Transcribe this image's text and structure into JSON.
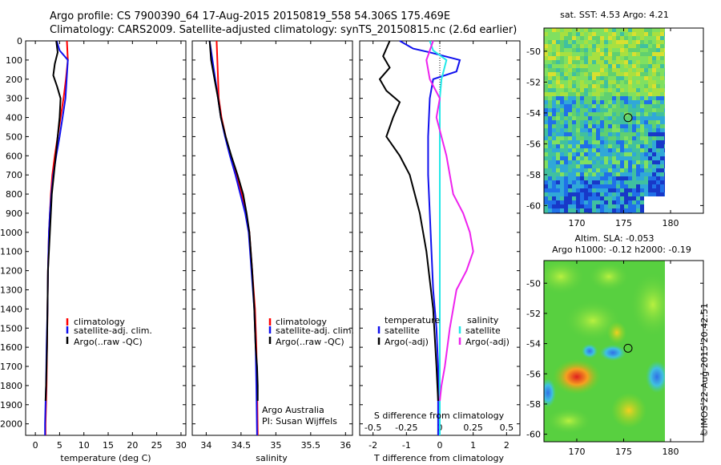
{
  "header": {
    "title_line1": "Argo profile: CS 7900390_64 17-Aug-2015 20150819_558 54.306S 175.469E",
    "title_line2": "Climatology: CARS2009. Satellite-adjusted climatology: synTS_20150815.nc (2.6d earlier)"
  },
  "credit": "©IMOS 22-Aug-2015 20:42:51",
  "colors": {
    "red": "#ff0000",
    "blue": "#1010ee",
    "black": "#000000",
    "cyan": "#22e8e8",
    "magenta": "#ee22ee"
  },
  "chart_data": [
    {
      "type": "line",
      "xlabel": "temperature (deg C)",
      "ylabel": "",
      "xlim": [
        -2,
        31
      ],
      "ylim": [
        2060,
        0
      ],
      "y_reversed": true,
      "xticks": [
        0,
        5,
        10,
        15,
        20,
        25,
        30
      ],
      "yticks": [
        0,
        100,
        200,
        300,
        400,
        500,
        600,
        700,
        800,
        900,
        1000,
        1100,
        1200,
        1300,
        1400,
        1500,
        1600,
        1700,
        1800,
        1900,
        2000
      ],
      "legend": [
        "climatology",
        "satellite-adj. clim.",
        "Argo(..raw -QC)"
      ],
      "series": [
        {
          "name": "climatology",
          "color": "red",
          "x": [
            6.5,
            6.7,
            6.3,
            5.8,
            5.2,
            4.6,
            4.0,
            3.5,
            3.2,
            3.0,
            2.8,
            2.6,
            2.5,
            2.4,
            2.3,
            2.2,
            2.1,
            2.1
          ],
          "y": [
            0,
            100,
            200,
            300,
            400,
            500,
            600,
            700,
            800,
            900,
            1000,
            1200,
            1400,
            1600,
            1800,
            1900,
            2000,
            2060
          ]
        },
        {
          "name": "satellite-adj. clim.",
          "color": "blue",
          "x": [
            4.4,
            5.0,
            6.7,
            6.2,
            5.6,
            5.0,
            4.3,
            3.7,
            3.3,
            3.0,
            2.8,
            2.6,
            2.5,
            2.3,
            2.2,
            2.1,
            2.0,
            2.0
          ],
          "y": [
            0,
            50,
            100,
            300,
            400,
            500,
            600,
            700,
            800,
            900,
            1000,
            1200,
            1400,
            1600,
            1800,
            1900,
            2000,
            2060
          ]
        },
        {
          "name": "Argo(..raw -QC)",
          "color": "black",
          "x": [
            4.3,
            4.6,
            4.0,
            3.7,
            4.5,
            5.2,
            5.0,
            4.6,
            4.2,
            3.8,
            3.4,
            3.2,
            3.0,
            2.8,
            2.6,
            2.5,
            2.4,
            2.3,
            2.2,
            2.1
          ],
          "y": [
            0,
            60,
            120,
            180,
            240,
            300,
            400,
            500,
            600,
            700,
            800,
            900,
            1000,
            1100,
            1200,
            1400,
            1600,
            1700,
            1800,
            1880
          ]
        }
      ]
    },
    {
      "type": "line",
      "xlabel": "salinity",
      "xlim": [
        33.8,
        36.1
      ],
      "ylim": [
        2060,
        0
      ],
      "y_reversed": true,
      "xticks": [
        34,
        34.5,
        35,
        35.5,
        36
      ],
      "legend": [
        "climatology",
        "satellite-adj. clim.",
        "Argo(..raw -QC)"
      ],
      "annotation": [
        "Argo Australia",
        "PI: Susan Wijffels"
      ],
      "series": [
        {
          "name": "climatology",
          "color": "red",
          "x": [
            34.15,
            34.16,
            34.17,
            34.18,
            34.22,
            34.28,
            34.35,
            34.43,
            34.51,
            34.57,
            34.62,
            34.66,
            34.7,
            34.72,
            34.73,
            34.74
          ],
          "y": [
            0,
            100,
            200,
            300,
            400,
            500,
            600,
            700,
            800,
            900,
            1000,
            1200,
            1400,
            1600,
            1800,
            2060
          ]
        },
        {
          "name": "satellite-adj. clim.",
          "color": "blue",
          "x": [
            34.05,
            34.09,
            34.13,
            34.17,
            34.21,
            34.27,
            34.34,
            34.42,
            34.49,
            34.56,
            34.61,
            34.65,
            34.69,
            34.71,
            34.72,
            34.73
          ],
          "y": [
            0,
            100,
            200,
            300,
            400,
            500,
            600,
            700,
            800,
            900,
            1000,
            1200,
            1400,
            1600,
            1800,
            2060
          ]
        },
        {
          "name": "Argo(..raw -QC)",
          "color": "black",
          "x": [
            34.05,
            34.07,
            34.12,
            34.17,
            34.21,
            34.28,
            34.36,
            34.45,
            34.53,
            34.58,
            34.62,
            34.66,
            34.69,
            34.71,
            34.73,
            34.74,
            34.74
          ],
          "y": [
            0,
            100,
            200,
            300,
            400,
            500,
            600,
            700,
            800,
            900,
            1000,
            1200,
            1400,
            1600,
            1700,
            1800,
            1880
          ]
        }
      ]
    },
    {
      "type": "line",
      "xlabel": "T difference from climatology",
      "xlabel_top": "S difference from climatology",
      "xlim": [
        -2.4,
        2.4
      ],
      "ylim": [
        2060,
        0
      ],
      "y_reversed": true,
      "xticks": [
        -2,
        -1,
        0,
        1,
        2
      ],
      "xticks_salinity": [
        -0.5,
        -0.25,
        0,
        0.25,
        0.5
      ],
      "legend_headers": [
        "temperature",
        "salinity"
      ],
      "legend": [
        "satellite",
        "Argo(-adj)",
        "satellite",
        "Argo(-adj)"
      ],
      "series": [
        {
          "name": "satellite",
          "group": "temperature",
          "color": "blue",
          "x": [
            -1.2,
            -0.8,
            -0.3,
            0.6,
            0.5,
            -0.2,
            -0.3,
            -0.35,
            -0.35,
            -0.3,
            -0.25,
            -0.2,
            -0.1,
            -0.05,
            -0.05,
            -0.05
          ],
          "y": [
            0,
            40,
            60,
            100,
            160,
            200,
            300,
            500,
            700,
            900,
            1100,
            1300,
            1500,
            1700,
            1900,
            2060
          ]
        },
        {
          "name": "Argo(-adj)",
          "group": "temperature",
          "color": "black",
          "x": [
            -1.5,
            -1.7,
            -1.5,
            -1.8,
            -1.6,
            -1.2,
            -1.4,
            -1.6,
            -1.2,
            -0.9,
            -0.6,
            -0.4,
            -0.2,
            -0.1,
            -0.05
          ],
          "y": [
            0,
            80,
            140,
            200,
            260,
            320,
            400,
            500,
            600,
            700,
            900,
            1100,
            1400,
            1700,
            1880
          ]
        },
        {
          "name": "satellite",
          "group": "salinity",
          "color": "cyan",
          "x": [
            -0.3,
            -0.2,
            0.2,
            0.05,
            0.0,
            0.0,
            0.0,
            0.0,
            0.0,
            0.0,
            0.0,
            0.0
          ],
          "y": [
            0,
            50,
            100,
            200,
            300,
            500,
            700,
            900,
            1200,
            1500,
            1800,
            2060
          ]
        },
        {
          "name": "Argo(-adj)",
          "group": "salinity",
          "color": "magenta",
          "x": [
            -0.2,
            -0.4,
            -0.3,
            0.0,
            -0.1,
            0.2,
            0.4,
            0.7,
            0.9,
            1.0,
            0.8,
            0.5,
            0.3,
            0.15,
            0.05,
            0.0
          ],
          "y": [
            0,
            100,
            200,
            300,
            400,
            600,
            800,
            900,
            1000,
            1100,
            1200,
            1300,
            1500,
            1700,
            1800,
            1880
          ]
        }
      ]
    },
    {
      "type": "heatmap",
      "title": "sat. SST: 4.53 Argo: 4.21",
      "xlim": [
        166.5,
        183.5
      ],
      "ylim": [
        -60.5,
        -48.5
      ],
      "xticks": [
        170,
        175,
        180
      ],
      "yticks": [
        -50,
        -52,
        -54,
        -56,
        -58,
        -60
      ],
      "marker": {
        "lon": 175.469,
        "lat": -54.306
      }
    },
    {
      "type": "heatmap",
      "title_line1": "Altim. SLA: -0.053",
      "title_line2": "Argo h1000: -0.12 h2000: -0.19",
      "xlim": [
        166.5,
        183.5
      ],
      "ylim": [
        -60.5,
        -48.5
      ],
      "xticks": [
        170,
        175,
        180
      ],
      "yticks": [
        -50,
        -52,
        -54,
        -56,
        -58,
        -60
      ],
      "marker": {
        "lon": 175.469,
        "lat": -54.306
      }
    }
  ]
}
